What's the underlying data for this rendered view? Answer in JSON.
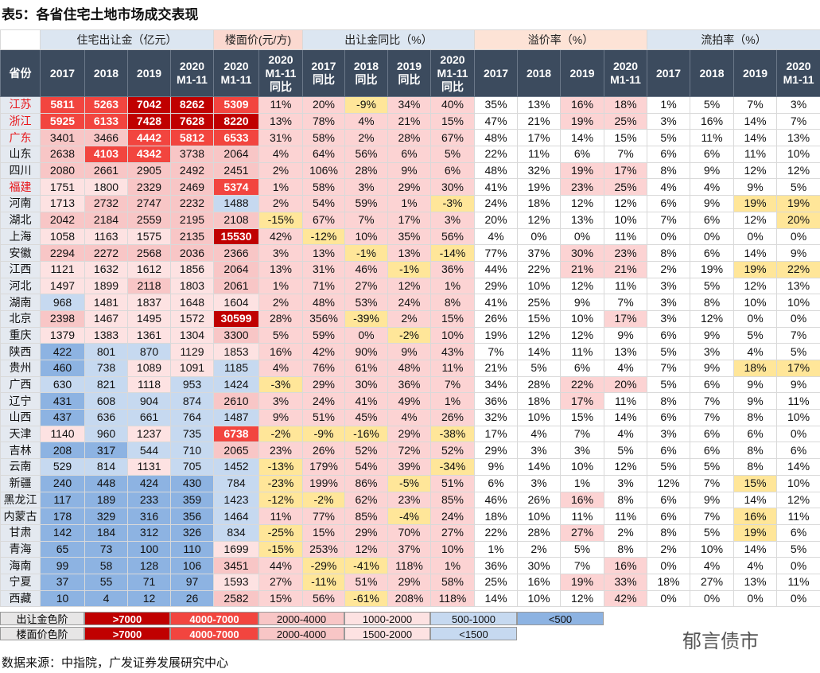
{
  "title": "表5：各省住宅土地市场成交表现",
  "groups": [
    "住宅出让金（亿元）",
    "楼面价(元/方)",
    "出让金同比（%）",
    "溢价率（%）",
    "流拍率（%）"
  ],
  "headers": [
    "省份",
    "2017",
    "2018",
    "2019",
    "2020\nM1-11",
    "2020\nM1-11",
    "2020\nM1-11\n同比",
    "2017\n同比",
    "2018\n同比",
    "2019\n同比",
    "2020\nM1-11\n同比",
    "2017",
    "2018",
    "2019",
    "2020\nM1-11",
    "2017",
    "2018",
    "2019",
    "2020\nM1-11"
  ],
  "highlighted_rows": [
    0,
    1,
    2,
    5
  ],
  "rows": [
    [
      "江苏",
      5811,
      5263,
      7042,
      8262,
      5309,
      "11%",
      "20%",
      "-9%",
      "34%",
      "40%",
      "35%",
      "13%",
      "16%",
      "18%",
      "1%",
      "5%",
      "7%",
      "3%"
    ],
    [
      "浙江",
      5925,
      6133,
      7428,
      7628,
      8220,
      "13%",
      "78%",
      "4%",
      "21%",
      "15%",
      "47%",
      "21%",
      "19%",
      "25%",
      "3%",
      "16%",
      "14%",
      "7%"
    ],
    [
      "广东",
      3401,
      3466,
      4442,
      5812,
      6533,
      "31%",
      "58%",
      "2%",
      "28%",
      "67%",
      "48%",
      "17%",
      "14%",
      "15%",
      "5%",
      "11%",
      "14%",
      "13%"
    ],
    [
      "山东",
      2638,
      4103,
      4342,
      3738,
      2064,
      "4%",
      "64%",
      "56%",
      "6%",
      "5%",
      "22%",
      "11%",
      "6%",
      "7%",
      "6%",
      "6%",
      "11%",
      "10%"
    ],
    [
      "四川",
      2080,
      2661,
      2905,
      2492,
      2451,
      "2%",
      "106%",
      "28%",
      "9%",
      "6%",
      "48%",
      "32%",
      "19%",
      "17%",
      "8%",
      "9%",
      "12%",
      "12%"
    ],
    [
      "福建",
      1751,
      1800,
      2329,
      2469,
      5374,
      "1%",
      "58%",
      "3%",
      "29%",
      "30%",
      "41%",
      "19%",
      "23%",
      "25%",
      "4%",
      "4%",
      "9%",
      "5%"
    ],
    [
      "河南",
      1713,
      2732,
      2747,
      2232,
      1488,
      "2%",
      "54%",
      "59%",
      "1%",
      "-3%",
      "24%",
      "18%",
      "12%",
      "12%",
      "6%",
      "9%",
      "19%",
      "19%"
    ],
    [
      "湖北",
      2042,
      2184,
      2559,
      2195,
      2108,
      "-15%",
      "67%",
      "7%",
      "17%",
      "3%",
      "20%",
      "12%",
      "13%",
      "10%",
      "7%",
      "6%",
      "12%",
      "20%"
    ],
    [
      "上海",
      1058,
      1163,
      1575,
      2135,
      15530,
      "42%",
      "-12%",
      "10%",
      "35%",
      "56%",
      "4%",
      "0%",
      "0%",
      "11%",
      "0%",
      "0%",
      "0%",
      "0%"
    ],
    [
      "安徽",
      2294,
      2272,
      2568,
      2036,
      2366,
      "3%",
      "13%",
      "-1%",
      "13%",
      "-14%",
      "77%",
      "37%",
      "30%",
      "23%",
      "8%",
      "6%",
      "14%",
      "9%"
    ],
    [
      "江西",
      1121,
      1632,
      1612,
      1856,
      2064,
      "13%",
      "31%",
      "46%",
      "-1%",
      "36%",
      "44%",
      "22%",
      "21%",
      "21%",
      "2%",
      "19%",
      "19%",
      "22%"
    ],
    [
      "河北",
      1497,
      1899,
      2118,
      1803,
      2061,
      "1%",
      "71%",
      "27%",
      "12%",
      "1%",
      "29%",
      "10%",
      "12%",
      "11%",
      "3%",
      "5%",
      "12%",
      "13%"
    ],
    [
      "湖南",
      968,
      1481,
      1837,
      1648,
      1604,
      "2%",
      "48%",
      "53%",
      "24%",
      "8%",
      "41%",
      "25%",
      "9%",
      "7%",
      "3%",
      "8%",
      "10%",
      "10%"
    ],
    [
      "北京",
      2398,
      1467,
      1495,
      1572,
      30599,
      "28%",
      "356%",
      "-39%",
      "2%",
      "15%",
      "26%",
      "15%",
      "10%",
      "17%",
      "3%",
      "12%",
      "0%",
      "0%"
    ],
    [
      "重庆",
      1379,
      1383,
      1361,
      1304,
      3300,
      "5%",
      "59%",
      "0%",
      "-2%",
      "10%",
      "19%",
      "12%",
      "12%",
      "9%",
      "6%",
      "9%",
      "5%",
      "7%"
    ],
    [
      "陕西",
      422,
      801,
      870,
      1129,
      1853,
      "16%",
      "42%",
      "90%",
      "9%",
      "43%",
      "7%",
      "14%",
      "11%",
      "13%",
      "5%",
      "3%",
      "4%",
      "5%"
    ],
    [
      "贵州",
      460,
      738,
      1089,
      1091,
      1185,
      "4%",
      "76%",
      "61%",
      "48%",
      "11%",
      "21%",
      "5%",
      "6%",
      "4%",
      "7%",
      "9%",
      "18%",
      "17%"
    ],
    [
      "广西",
      630,
      821,
      1118,
      953,
      1424,
      "-3%",
      "29%",
      "30%",
      "36%",
      "7%",
      "34%",
      "28%",
      "22%",
      "20%",
      "5%",
      "6%",
      "9%",
      "9%"
    ],
    [
      "辽宁",
      431,
      608,
      904,
      874,
      2610,
      "3%",
      "24%",
      "41%",
      "49%",
      "1%",
      "36%",
      "18%",
      "17%",
      "11%",
      "8%",
      "7%",
      "9%",
      "11%"
    ],
    [
      "山西",
      437,
      636,
      661,
      764,
      1487,
      "9%",
      "51%",
      "45%",
      "4%",
      "26%",
      "32%",
      "10%",
      "15%",
      "14%",
      "6%",
      "7%",
      "8%",
      "10%"
    ],
    [
      "天津",
      1140,
      960,
      1237,
      735,
      6738,
      "-2%",
      "-9%",
      "-16%",
      "29%",
      "-38%",
      "17%",
      "4%",
      "7%",
      "4%",
      "3%",
      "6%",
      "6%",
      "0%"
    ],
    [
      "吉林",
      208,
      317,
      544,
      710,
      2065,
      "23%",
      "26%",
      "52%",
      "72%",
      "52%",
      "29%",
      "3%",
      "3%",
      "5%",
      "6%",
      "6%",
      "8%",
      "6%"
    ],
    [
      "云南",
      529,
      814,
      1131,
      705,
      1452,
      "-13%",
      "179%",
      "54%",
      "39%",
      "-34%",
      "9%",
      "14%",
      "10%",
      "12%",
      "5%",
      "5%",
      "8%",
      "14%"
    ],
    [
      "新疆",
      240,
      448,
      424,
      430,
      784,
      "-23%",
      "199%",
      "86%",
      "-5%",
      "51%",
      "6%",
      "3%",
      "1%",
      "3%",
      "12%",
      "7%",
      "15%",
      "10%"
    ],
    [
      "黑龙江",
      117,
      189,
      233,
      359,
      1423,
      "-12%",
      "-2%",
      "62%",
      "23%",
      "85%",
      "46%",
      "26%",
      "16%",
      "8%",
      "6%",
      "9%",
      "14%",
      "12%"
    ],
    [
      "内蒙古",
      178,
      329,
      316,
      356,
      1464,
      "11%",
      "77%",
      "85%",
      "-4%",
      "24%",
      "18%",
      "10%",
      "11%",
      "11%",
      "6%",
      "7%",
      "16%",
      "11%"
    ],
    [
      "甘肃",
      142,
      184,
      312,
      326,
      834,
      "-25%",
      "15%",
      "29%",
      "70%",
      "27%",
      "22%",
      "28%",
      "27%",
      "2%",
      "8%",
      "5%",
      "19%",
      "6%"
    ],
    [
      "青海",
      65,
      73,
      100,
      110,
      1699,
      "-15%",
      "253%",
      "12%",
      "37%",
      "10%",
      "1%",
      "2%",
      "5%",
      "8%",
      "2%",
      "10%",
      "14%",
      "5%"
    ],
    [
      "海南",
      99,
      58,
      128,
      106,
      3451,
      "44%",
      "-29%",
      "-41%",
      "118%",
      "1%",
      "36%",
      "30%",
      "7%",
      "16%",
      "0%",
      "4%",
      "4%",
      "0%"
    ],
    [
      "宁夏",
      37,
      55,
      71,
      97,
      1593,
      "27%",
      "-11%",
      "51%",
      "29%",
      "58%",
      "25%",
      "16%",
      "19%",
      "33%",
      "18%",
      "27%",
      "13%",
      "11%"
    ],
    [
      "西藏",
      10,
      4,
      12,
      26,
      2582,
      "15%",
      "56%",
      "-61%",
      "208%",
      "118%",
      "14%",
      "10%",
      "12%",
      "42%",
      "0%",
      "0%",
      "0%",
      "0%"
    ]
  ],
  "legend_land": {
    "label": "出让金色阶",
    "items": [
      {
        "label": ">7000",
        "min": 7000,
        "color": "#c00000"
      },
      {
        "label": "4000-7000",
        "min": 4000,
        "color": "#f2453f"
      },
      {
        "label": "2000-4000",
        "min": 2000,
        "color": "#f8c6c6"
      },
      {
        "label": "1000-2000",
        "min": 1000,
        "color": "#fde2e2"
      },
      {
        "label": "500-1000",
        "min": 500,
        "color": "#c6d9f0"
      },
      {
        "label": "<500",
        "min": 0,
        "color": "#8db3e2"
      }
    ]
  },
  "legend_price": {
    "label": "楼面价色阶",
    "items": [
      {
        "label": ">7000",
        "min": 7000,
        "color": "#c00000"
      },
      {
        "label": "4000-7000",
        "min": 4000,
        "color": "#f2453f"
      },
      {
        "label": "2000-4000",
        "min": 2000,
        "color": "#f8c6c6"
      },
      {
        "label": "1500-2000",
        "min": 1500,
        "color": "#fde2e2"
      },
      {
        "label": "<1500",
        "min": 0,
        "color": "#c6d9f0"
      }
    ]
  },
  "watermark": "郁言债市",
  "source": "数据来源：中指院，广发证券发展研究中心"
}
